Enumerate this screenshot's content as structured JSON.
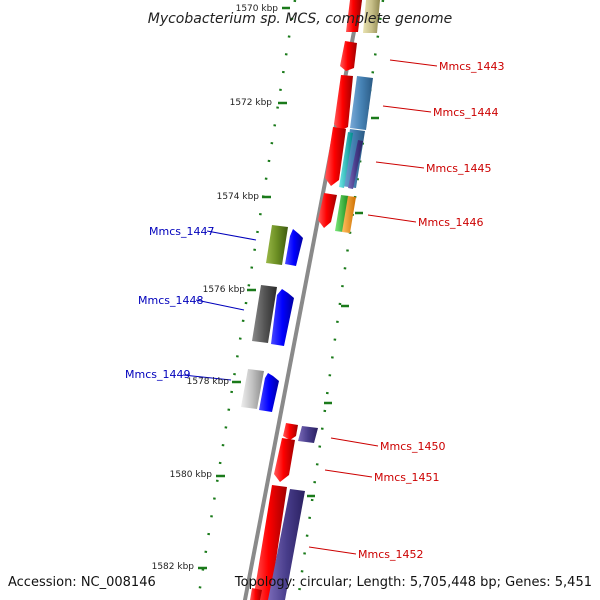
{
  "title": "Mycobacterium sp. MCS, complete genome",
  "footer": {
    "accession": "Accession: NC_008146",
    "summary": "Topology: circular; Length: 5,705,448 bp; Genes: 5,451"
  },
  "colors": {
    "forward_label": "#cc0000",
    "reverse_label": "#0000bb",
    "backbone": "#888888",
    "tick": "#1a7a1a"
  },
  "ticks": [
    {
      "label": "1570 kbp"
    },
    {
      "label": "1572 kbp"
    },
    {
      "label": "1574 kbp"
    },
    {
      "label": "1576 kbp"
    },
    {
      "label": "1578 kbp"
    },
    {
      "label": "1580 kbp"
    },
    {
      "label": "1582 kbp"
    }
  ],
  "gene_labels": [
    {
      "text": "Mmcs_1443",
      "strand": "forward"
    },
    {
      "text": "Mmcs_1444",
      "strand": "forward"
    },
    {
      "text": "Mmcs_1445",
      "strand": "forward"
    },
    {
      "text": "Mmcs_1446",
      "strand": "forward"
    },
    {
      "text": "Mmcs_1447",
      "strand": "reverse"
    },
    {
      "text": "Mmcs_1448",
      "strand": "reverse"
    },
    {
      "text": "Mmcs_1449",
      "strand": "reverse"
    },
    {
      "text": "Mmcs_1450",
      "strand": "forward"
    },
    {
      "text": "Mmcs_1451",
      "strand": "forward"
    },
    {
      "text": "Mmcs_1452",
      "strand": "forward"
    }
  ]
}
